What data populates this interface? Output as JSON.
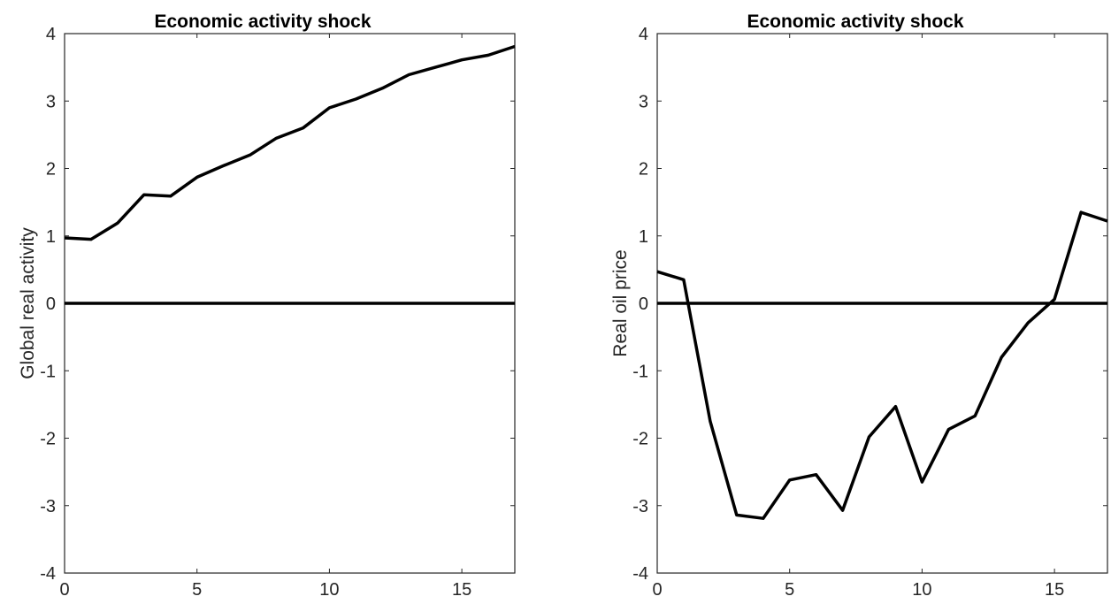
{
  "chart_data": [
    {
      "type": "line",
      "title": "Economic activity shock",
      "ylabel": "Global real activity",
      "xlim": [
        0,
        17
      ],
      "ylim": [
        -4,
        4
      ],
      "xticks": [
        "0",
        "5",
        "10",
        "15"
      ],
      "yticks": [
        "4",
        "3",
        "2",
        "1",
        "0",
        "-1",
        "-2",
        "-3",
        "-4"
      ],
      "zero_line": true,
      "grid": false,
      "series": [
        {
          "x": [
            0,
            1,
            2,
            3,
            4,
            5,
            6,
            7,
            8,
            9,
            10,
            11,
            12,
            13,
            14,
            15,
            16,
            17
          ],
          "values": [
            0.97,
            0.95,
            1.19,
            1.61,
            1.59,
            1.87,
            2.04,
            2.2,
            2.45,
            2.6,
            2.9,
            3.03,
            3.19,
            3.39,
            3.5,
            3.61,
            3.68,
            3.81
          ]
        }
      ]
    },
    {
      "type": "line",
      "title": "Economic activity shock",
      "ylabel": "Real oil price",
      "xlim": [
        0,
        17
      ],
      "ylim": [
        -4,
        4
      ],
      "xticks": [
        "0",
        "5",
        "10",
        "15"
      ],
      "yticks": [
        "4",
        "3",
        "2",
        "1",
        "0",
        "-1",
        "-2",
        "-3",
        "-4"
      ],
      "zero_line": true,
      "grid": false,
      "series": [
        {
          "x": [
            0,
            1,
            2,
            3,
            4,
            5,
            6,
            7,
            8,
            9,
            10,
            11,
            12,
            13,
            14,
            15,
            16,
            17
          ],
          "values": [
            0.47,
            0.35,
            -1.75,
            -3.14,
            -3.19,
            -2.62,
            -2.54,
            -3.07,
            -1.98,
            -1.53,
            -2.65,
            -1.87,
            -1.67,
            -0.8,
            -0.29,
            0.06,
            1.35,
            1.22
          ]
        }
      ]
    }
  ]
}
